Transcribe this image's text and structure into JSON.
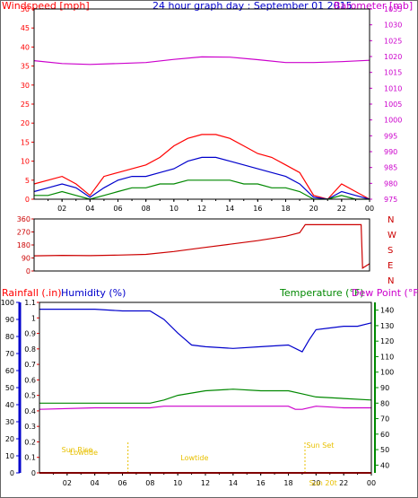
{
  "chart_data": [
    {
      "type": "line",
      "title": "24 hour graph day : September 01 2015",
      "ylabel": "Windspeed [mph]",
      "y2label": "Barometer [mb]",
      "ylim": [
        0,
        50
      ],
      "y2lim": [
        975,
        1035
      ],
      "yticks": [
        "0",
        "5",
        "10",
        "15",
        "20",
        "25",
        "30",
        "35",
        "40",
        "45",
        "50"
      ],
      "y2ticks": [
        "975",
        "980",
        "985",
        "990",
        "995",
        "1000",
        "1005",
        "1010",
        "1015",
        "1020",
        "1025",
        "1030",
        "1035"
      ],
      "xticks": [
        "02",
        "04",
        "06",
        "08",
        "10",
        "12",
        "14",
        "16",
        "18",
        "20",
        "22",
        "00"
      ],
      "colors": {
        "gust": "#ff0000",
        "avg": "#0000cc",
        "low": "#008800",
        "baro": "#cc00cc",
        "axis_left": "#ff0000",
        "axis_right": "#cc00cc"
      },
      "series": [
        {
          "values": [
            [
              0,
              4
            ],
            [
              1,
              5
            ],
            [
              2,
              6
            ],
            [
              3,
              4
            ],
            [
              4,
              1
            ],
            [
              5,
              6
            ],
            [
              6,
              7
            ],
            [
              7,
              8
            ],
            [
              8,
              9
            ],
            [
              9,
              11
            ],
            [
              10,
              14
            ],
            [
              11,
              16
            ],
            [
              12,
              17
            ],
            [
              13,
              17
            ],
            [
              14,
              16
            ],
            [
              15,
              14
            ],
            [
              16,
              12
            ],
            [
              17,
              11
            ],
            [
              18,
              9
            ],
            [
              19,
              7
            ],
            [
              20,
              1
            ],
            [
              21,
              0
            ],
            [
              22,
              4
            ],
            [
              23,
              2
            ],
            [
              24,
              0
            ]
          ]
        },
        {
          "values": [
            [
              0,
              2
            ],
            [
              1,
              3
            ],
            [
              2,
              4
            ],
            [
              3,
              3
            ],
            [
              4,
              0.5
            ],
            [
              5,
              3
            ],
            [
              6,
              5
            ],
            [
              7,
              6
            ],
            [
              8,
              6
            ],
            [
              9,
              7
            ],
            [
              10,
              8
            ],
            [
              11,
              10
            ],
            [
              12,
              11
            ],
            [
              13,
              11
            ],
            [
              14,
              10
            ],
            [
              15,
              9
            ],
            [
              16,
              8
            ],
            [
              17,
              7
            ],
            [
              18,
              6
            ],
            [
              19,
              4
            ],
            [
              20,
              0.5
            ],
            [
              21,
              0
            ],
            [
              22,
              2
            ],
            [
              23,
              1
            ],
            [
              24,
              0
            ]
          ]
        },
        {
          "values": [
            [
              0,
              1
            ],
            [
              1,
              1
            ],
            [
              2,
              2
            ],
            [
              3,
              1
            ],
            [
              4,
              0
            ],
            [
              5,
              1
            ],
            [
              6,
              2
            ],
            [
              7,
              3
            ],
            [
              8,
              3
            ],
            [
              9,
              4
            ],
            [
              10,
              4
            ],
            [
              11,
              5
            ],
            [
              12,
              5
            ],
            [
              13,
              5
            ],
            [
              14,
              5
            ],
            [
              15,
              4
            ],
            [
              16,
              4
            ],
            [
              17,
              3
            ],
            [
              18,
              3
            ],
            [
              19,
              2
            ],
            [
              20,
              0
            ],
            [
              21,
              0
            ],
            [
              22,
              1
            ],
            [
              23,
              0
            ],
            [
              24,
              0
            ]
          ]
        },
        {
          "values": [
            [
              0,
              1018.7
            ],
            [
              2,
              1017.8
            ],
            [
              4,
              1017.5
            ],
            [
              6,
              1017.8
            ],
            [
              8,
              1018.1
            ],
            [
              10,
              1019.1
            ],
            [
              12,
              1019.9
            ],
            [
              14,
              1019.8
            ],
            [
              16,
              1019.0
            ],
            [
              18,
              1018.1
            ],
            [
              20,
              1018.1
            ],
            [
              22,
              1018.4
            ],
            [
              24,
              1018.8
            ]
          ]
        }
      ]
    },
    {
      "type": "line",
      "yticks": [
        "360",
        "270",
        "180",
        "90",
        "0"
      ],
      "ylim": [
        0,
        360
      ],
      "dir_labels": [
        "N",
        "W",
        "S",
        "E",
        "N"
      ],
      "colors": {
        "line": "#cc0000",
        "axis": "#cc0000"
      },
      "series": [
        {
          "values": [
            [
              0,
              105
            ],
            [
              2,
              108
            ],
            [
              4,
              106
            ],
            [
              6,
              110
            ],
            [
              8,
              115
            ],
            [
              10,
              135
            ],
            [
              12,
              160
            ],
            [
              14,
              185
            ],
            [
              16,
              210
            ],
            [
              18,
              240
            ],
            [
              19,
              265
            ],
            [
              19.4,
              320
            ],
            [
              20,
              320
            ],
            [
              22,
              320
            ],
            [
              23.4,
              320
            ],
            [
              23.5,
              20
            ],
            [
              24,
              50
            ]
          ]
        }
      ]
    },
    {
      "type": "line",
      "labels": {
        "rain": "Rainfall (.in)",
        "hum": "Humidity (%)",
        "temp": "Temperature (°F)",
        "dew": "Dew Point (°F)"
      },
      "rain_ticks": [
        "0",
        "0.1",
        "0.2",
        "0.3",
        "0.4",
        "0.5",
        "0.6",
        "0.7",
        "0.8",
        "0.9",
        "1",
        "1.1"
      ],
      "hum_ticks": [
        "0",
        "10",
        "20",
        "30",
        "40",
        "50",
        "60",
        "70",
        "80",
        "90",
        "100"
      ],
      "temp_ticks": [
        "40",
        "50",
        "60",
        "70",
        "80",
        "90",
        "100",
        "110",
        "120",
        "130",
        "140"
      ],
      "rainlim": [
        0,
        1.1
      ],
      "humlim": [
        0,
        100
      ],
      "templim": [
        35,
        145
      ],
      "xticks": [
        "02",
        "04",
        "06",
        "08",
        "10",
        "12",
        "14",
        "16",
        "18",
        "20",
        "22",
        "00"
      ],
      "annotations": [
        "Sun Rise",
        "Sun Set",
        "Lowtide",
        "Lowtide",
        "Sun 20t"
      ],
      "colors": {
        "rain": "#ff0000",
        "hum": "#0000cc",
        "temp": "#008800",
        "dew": "#cc00cc",
        "ann": "#e8c000"
      },
      "series": [
        {
          "values": [
            [
              0,
              96
            ],
            [
              4,
              96
            ],
            [
              6,
              95
            ],
            [
              8,
              95
            ],
            [
              9,
              90
            ],
            [
              10,
              82
            ],
            [
              11,
              75
            ],
            [
              12,
              74
            ],
            [
              14,
              73
            ],
            [
              16,
              74
            ],
            [
              18,
              75
            ],
            [
              19,
              71
            ],
            [
              19.5,
              78
            ],
            [
              20,
              84
            ],
            [
              21,
              85
            ],
            [
              22,
              86
            ],
            [
              23,
              86
            ],
            [
              24,
              88
            ]
          ]
        },
        {
          "values": [
            [
              0,
              80
            ],
            [
              3,
              80
            ],
            [
              6,
              80
            ],
            [
              8,
              80
            ],
            [
              9,
              82
            ],
            [
              10,
              85
            ],
            [
              12,
              88
            ],
            [
              14,
              89
            ],
            [
              16,
              88
            ],
            [
              18,
              88
            ],
            [
              19,
              86
            ],
            [
              20,
              84
            ],
            [
              22,
              83
            ],
            [
              24,
              82
            ]
          ]
        },
        {
          "values": [
            [
              0,
              76
            ],
            [
              4,
              77
            ],
            [
              6,
              77
            ],
            [
              8,
              77
            ],
            [
              9,
              78
            ],
            [
              10,
              78
            ],
            [
              12,
              78
            ],
            [
              14,
              78
            ],
            [
              16,
              78
            ],
            [
              18,
              78
            ],
            [
              18.5,
              76
            ],
            [
              19,
              76
            ],
            [
              20,
              78
            ],
            [
              22,
              77
            ],
            [
              24,
              77
            ]
          ]
        },
        {
          "values": [
            [
              0,
              0
            ],
            [
              24,
              0
            ]
          ]
        }
      ]
    }
  ]
}
